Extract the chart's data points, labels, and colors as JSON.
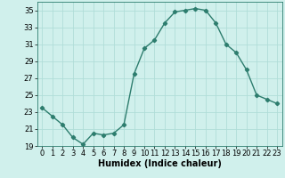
{
  "x": [
    0,
    1,
    2,
    3,
    4,
    5,
    6,
    7,
    8,
    9,
    10,
    11,
    12,
    13,
    14,
    15,
    16,
    17,
    18,
    19,
    20,
    21,
    22,
    23
  ],
  "y": [
    23.5,
    22.5,
    21.5,
    20.0,
    19.2,
    20.5,
    20.3,
    20.5,
    21.5,
    27.5,
    30.5,
    31.5,
    33.5,
    34.8,
    35.0,
    35.2,
    35.0,
    33.5,
    31.0,
    30.0,
    28.0,
    25.0,
    24.5,
    24.0
  ],
  "xlabel": "Humidex (Indice chaleur)",
  "ylabel": "",
  "xlim": [
    -0.5,
    23.5
  ],
  "ylim": [
    19,
    36
  ],
  "yticks": [
    19,
    21,
    23,
    25,
    27,
    29,
    31,
    33,
    35
  ],
  "xticks": [
    0,
    1,
    2,
    3,
    4,
    5,
    6,
    7,
    8,
    9,
    10,
    11,
    12,
    13,
    14,
    15,
    16,
    17,
    18,
    19,
    20,
    21,
    22,
    23
  ],
  "line_color": "#2d7d6e",
  "bg_color": "#d0f0ec",
  "grid_color": "#b0ddd8",
  "marker": "D",
  "marker_size": 2.2,
  "line_width": 1.0,
  "xlabel_fontsize": 7,
  "tick_fontsize": 6
}
